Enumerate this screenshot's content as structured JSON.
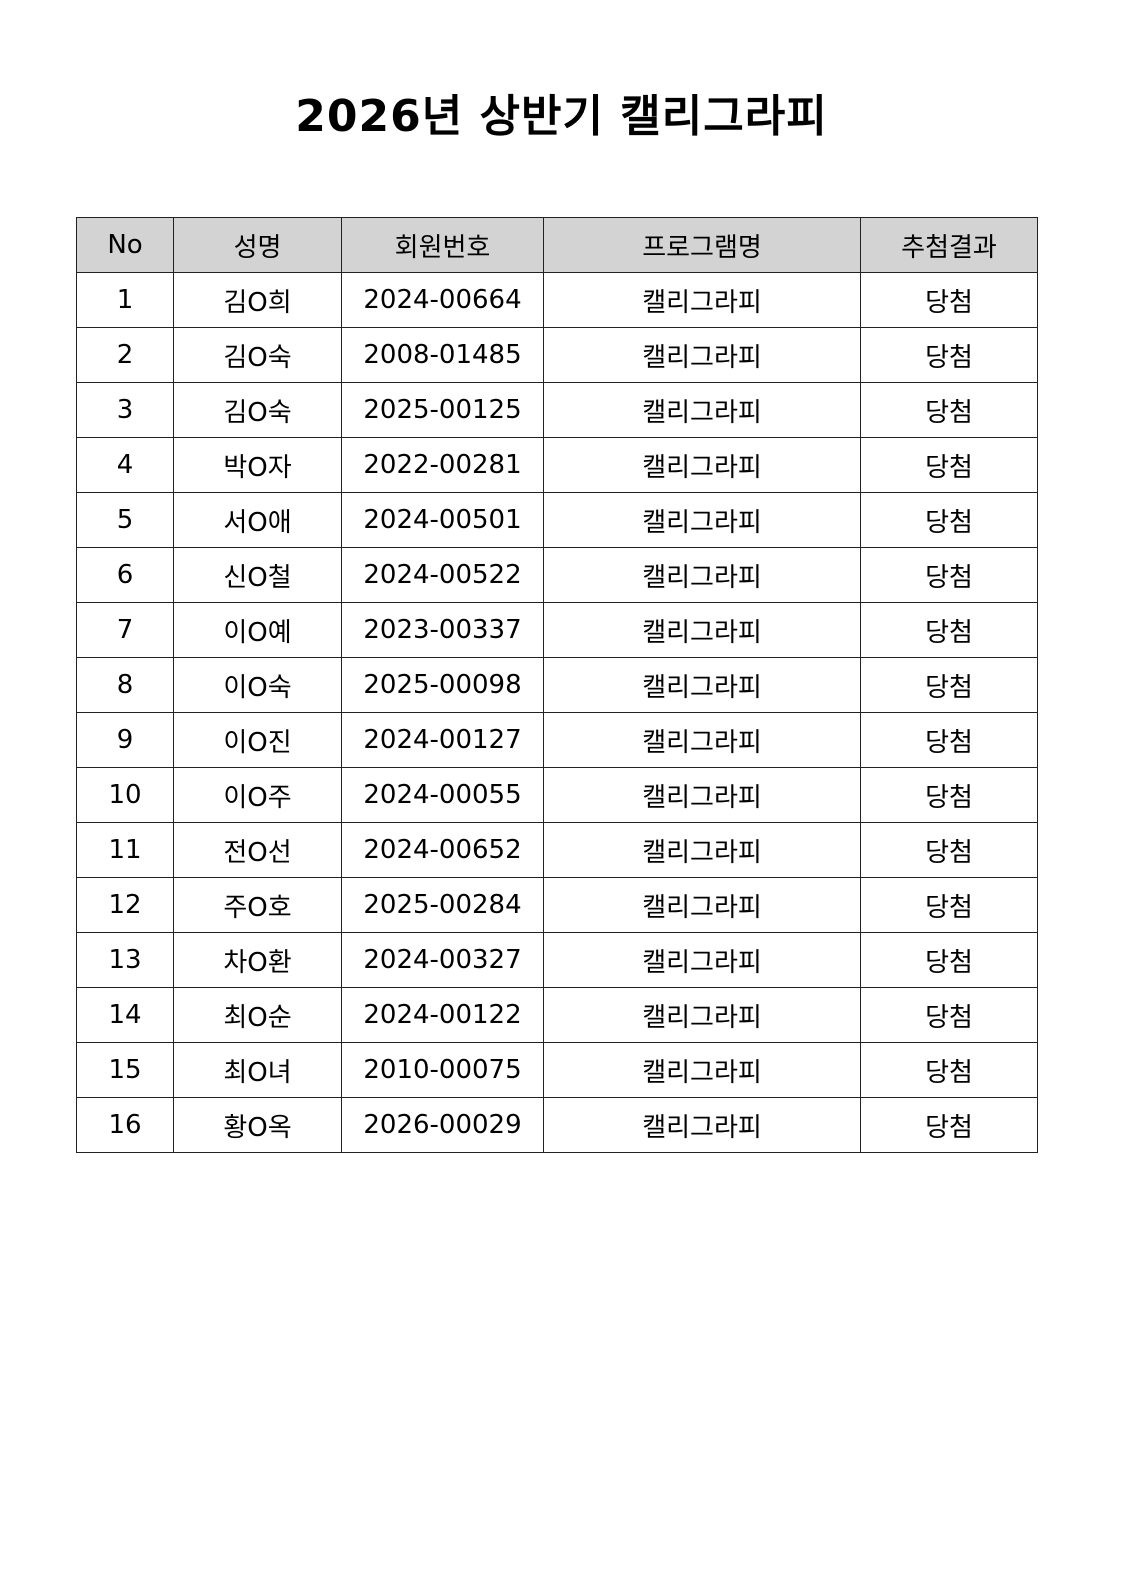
{
  "title": "2026년 상반기 캘리그라피",
  "table": {
    "headers": [
      "No",
      "성명",
      "회원번호",
      "프로그램명",
      "추첨결과"
    ],
    "rows": [
      [
        "1",
        "김O희",
        "2024-00664",
        "캘리그라피",
        "당첨"
      ],
      [
        "2",
        "김O숙",
        "2008-01485",
        "캘리그라피",
        "당첨"
      ],
      [
        "3",
        "김O숙",
        "2025-00125",
        "캘리그라피",
        "당첨"
      ],
      [
        "4",
        "박O자",
        "2022-00281",
        "캘리그라피",
        "당첨"
      ],
      [
        "5",
        "서O애",
        "2024-00501",
        "캘리그라피",
        "당첨"
      ],
      [
        "6",
        "신O철",
        "2024-00522",
        "캘리그라피",
        "당첨"
      ],
      [
        "7",
        "이O예",
        "2023-00337",
        "캘리그라피",
        "당첨"
      ],
      [
        "8",
        "이O숙",
        "2025-00098",
        "캘리그라피",
        "당첨"
      ],
      [
        "9",
        "이O진",
        "2024-00127",
        "캘리그라피",
        "당첨"
      ],
      [
        "10",
        "이O주",
        "2024-00055",
        "캘리그라피",
        "당첨"
      ],
      [
        "11",
        "전O선",
        "2024-00652",
        "캘리그라피",
        "당첨"
      ],
      [
        "12",
        "주O호",
        "2025-00284",
        "캘리그라피",
        "당첨"
      ],
      [
        "13",
        "차O환",
        "2024-00327",
        "캘리그라피",
        "당첨"
      ],
      [
        "14",
        "최O순",
        "2024-00122",
        "캘리그라피",
        "당첨"
      ],
      [
        "15",
        "최O녀",
        "2010-00075",
        "캘리그라피",
        "당첨"
      ],
      [
        "16",
        "황O옥",
        "2026-00029",
        "캘리그라피",
        "당첨"
      ]
    ]
  }
}
